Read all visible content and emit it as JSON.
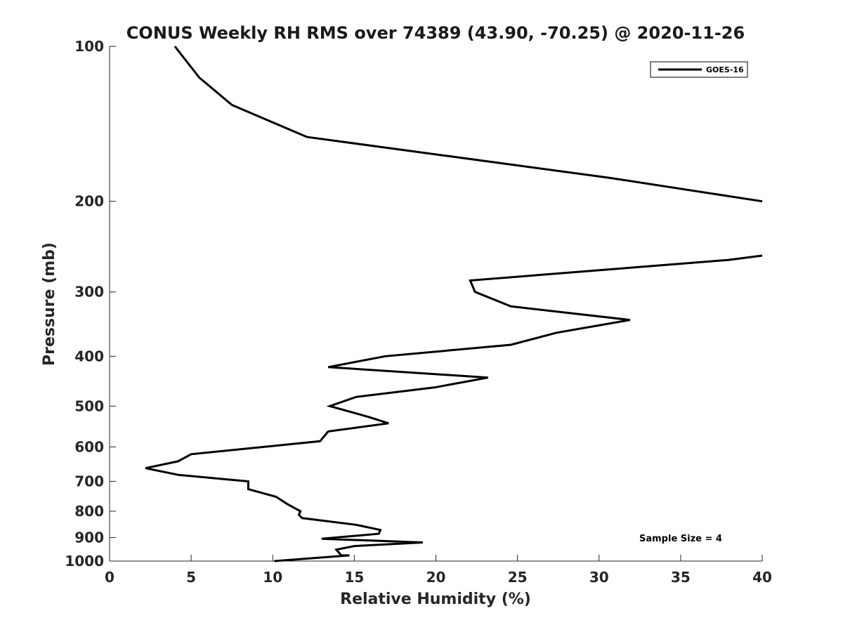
{
  "chart_data": {
    "type": "line",
    "title": "CONUS Weekly RH RMS over 74389 (43.90, -70.25) @ 2020-11-26",
    "xlabel": "Relative Humidity (%)",
    "ylabel": "Pressure (mb)",
    "xlim": [
      0,
      40
    ],
    "ylim": [
      1000,
      100
    ],
    "yscale": "log",
    "y_reversed": true,
    "xticks": [
      0,
      5,
      10,
      15,
      20,
      25,
      30,
      35,
      40
    ],
    "yticks": [
      100,
      200,
      300,
      400,
      500,
      600,
      700,
      800,
      900,
      1000
    ],
    "grid": false,
    "legend_position": "top-right",
    "series": [
      {
        "name": "GOES-16",
        "color": "#000000",
        "segments": [
          [
            [
              10.1,
              1000
            ],
            [
              14.7,
              975
            ],
            [
              14.2,
              975
            ],
            [
              13.9,
              950
            ],
            [
              15.0,
              935
            ],
            [
              19.2,
              920
            ],
            [
              13.0,
              905
            ],
            [
              16.5,
              885
            ],
            [
              16.6,
              870
            ],
            [
              15.1,
              850
            ],
            [
              11.8,
              825
            ],
            [
              11.6,
              813
            ],
            [
              11.7,
              800
            ],
            [
              10.9,
              775
            ],
            [
              10.2,
              750
            ],
            [
              8.5,
              725
            ],
            [
              8.5,
              700
            ],
            [
              4.2,
              680
            ],
            [
              2.2,
              660
            ],
            [
              4.2,
              640
            ],
            [
              5.0,
              620
            ],
            [
              12.9,
              585
            ],
            [
              13.4,
              560
            ],
            [
              17.1,
              540
            ],
            [
              15.9,
              525
            ],
            [
              13.5,
              500
            ],
            [
              15.1,
              480
            ],
            [
              19.9,
              460
            ],
            [
              23.2,
              440
            ],
            [
              13.4,
              420
            ],
            [
              16.9,
              400
            ],
            [
              24.6,
              380
            ],
            [
              27.4,
              360
            ],
            [
              31.9,
              340
            ],
            [
              24.6,
              320
            ],
            [
              22.4,
              300
            ],
            [
              22.1,
              285
            ],
            [
              37.9,
              260
            ],
            [
              40,
              255
            ]
          ],
          [
            [
              40,
              200
            ],
            [
              30.6,
              180
            ],
            [
              12.1,
              150
            ],
            [
              7.5,
              130
            ],
            [
              5.5,
              115
            ],
            [
              4.0,
              100
            ]
          ]
        ]
      }
    ],
    "annotation": "Sample Size = 4"
  }
}
